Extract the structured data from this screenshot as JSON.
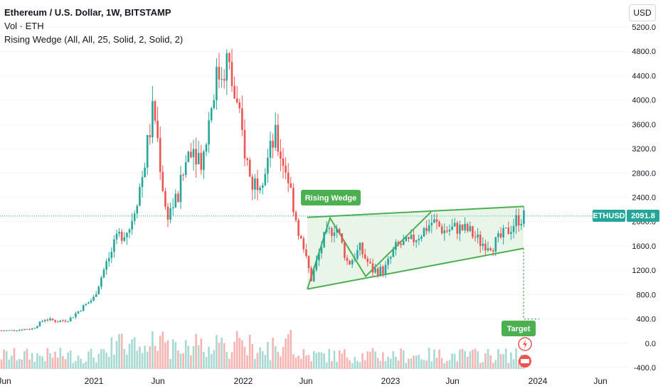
{
  "legend": {
    "title": "Ethereum / U.S. Dollar, 1W, BITSTAMP",
    "vol": "Vol · ETH",
    "indicator": "Rising Wedge (All, All, 25, Solid, 2, Solid, 2)"
  },
  "currency_button": "USD",
  "colors": {
    "up": "#26a69a",
    "down": "#ef5350",
    "wedge": "#4caf50",
    "wedge_fill": "#e3f3e3",
    "up_vol": "#a8d9d3",
    "down_vol": "#f5b3b1"
  },
  "chart_data": {
    "type": "candlestick",
    "symbol": "ETHUSD",
    "last_price": "2091.8",
    "x_ticks": [
      "Jun",
      "2021",
      "Jun",
      "2022",
      "Jun",
      "2023",
      "Jun",
      "2024",
      "Jun"
    ],
    "y_ticks": [
      "5200.0",
      "4800.0",
      "4400.0",
      "4000.0",
      "3600.0",
      "3200.0",
      "2800.0",
      "2400.0",
      "2000.0",
      "1600.0",
      "1200.0",
      "800.0",
      "400.0",
      "0.0",
      "-400.0"
    ],
    "ylim": [
      -400,
      5200
    ],
    "series": [
      {
        "date": "2020-05",
        "close": 210
      },
      {
        "date": "2020-07",
        "close": 240
      },
      {
        "date": "2020-08",
        "close": 400
      },
      {
        "date": "2020-09",
        "close": 360
      },
      {
        "date": "2020-10",
        "close": 390
      },
      {
        "date": "2020-11",
        "close": 580
      },
      {
        "date": "2020-12",
        "close": 740
      },
      {
        "date": "2021-01",
        "close": 1300
      },
      {
        "date": "2021-02",
        "close": 1750
      },
      {
        "date": "2021-03",
        "close": 1900
      },
      {
        "date": "2021-04",
        "close": 2700
      },
      {
        "date": "2021-05",
        "close": 3900
      },
      {
        "date": "2021-06",
        "close": 2100
      },
      {
        "date": "2021-07",
        "close": 2400
      },
      {
        "date": "2021-08",
        "close": 3300
      },
      {
        "date": "2021-09",
        "close": 3000
      },
      {
        "date": "2021-10",
        "close": 4300
      },
      {
        "date": "2021-11",
        "close": 4650
      },
      {
        "date": "2021-12",
        "close": 3700
      },
      {
        "date": "2022-01",
        "close": 2600
      },
      {
        "date": "2022-02",
        "close": 2800
      },
      {
        "date": "2022-03",
        "close": 3400
      },
      {
        "date": "2022-04",
        "close": 2800
      },
      {
        "date": "2022-05",
        "close": 1800
      },
      {
        "date": "2022-06",
        "close": 1050
      },
      {
        "date": "2022-07",
        "close": 1700
      },
      {
        "date": "2022-08",
        "close": 1950
      },
      {
        "date": "2022-09",
        "close": 1300
      },
      {
        "date": "2022-10",
        "close": 1550
      },
      {
        "date": "2022-11",
        "close": 1200
      },
      {
        "date": "2022-12",
        "close": 1200
      },
      {
        "date": "2023-01",
        "close": 1600
      },
      {
        "date": "2023-02",
        "close": 1650
      },
      {
        "date": "2023-03",
        "close": 1800
      },
      {
        "date": "2023-04",
        "close": 2000
      },
      {
        "date": "2023-05",
        "close": 1850
      },
      {
        "date": "2023-06",
        "close": 1900
      },
      {
        "date": "2023-07",
        "close": 1850
      },
      {
        "date": "2023-08",
        "close": 1650
      },
      {
        "date": "2023-09",
        "close": 1620
      },
      {
        "date": "2023-10",
        "close": 1800
      },
      {
        "date": "2023-11",
        "close": 2050
      },
      {
        "date": "2023-12",
        "close": 2090
      }
    ],
    "annotations": [
      {
        "label": "Rising Wedge"
      },
      {
        "label": "Target"
      }
    ]
  }
}
